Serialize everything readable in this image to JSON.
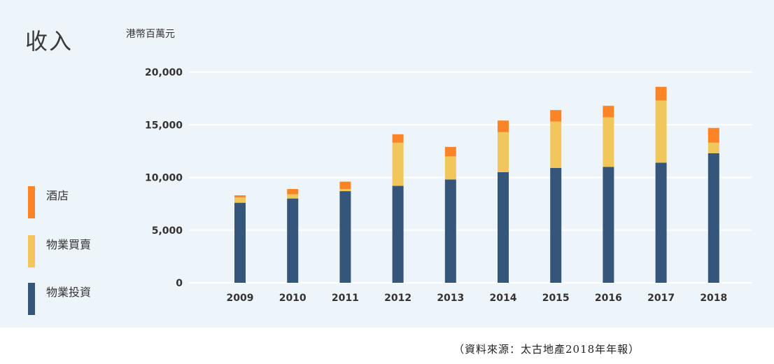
{
  "title": "收入",
  "unit": "港幣百萬元",
  "source": "（資料來源：太古地產2018年年報）",
  "legend": [
    {
      "label": "酒店",
      "color": "#fb8526"
    },
    {
      "label": "物業買賣",
      "color": "#f1c75b"
    },
    {
      "label": "物業投資",
      "color": "#35567a"
    }
  ],
  "chart_data": {
    "type": "bar",
    "stacked": true,
    "title": "收入",
    "ylabel": "港幣百萬元",
    "xlabel": "",
    "ylim": [
      0,
      20000
    ],
    "yticks": [
      "0",
      "5,000",
      "10,000",
      "15,000",
      "20,000"
    ],
    "ytick_values": [
      0,
      5000,
      10000,
      15000,
      20000
    ],
    "grid": true,
    "legend_position": "left",
    "categories": [
      "2009",
      "2010",
      "2011",
      "2012",
      "2013",
      "2014",
      "2015",
      "2016",
      "2017",
      "2018"
    ],
    "series": [
      {
        "name": "物業投資",
        "color": "#35567a",
        "values": [
          7600,
          8000,
          8700,
          9200,
          9800,
          10500,
          10900,
          11000,
          11400,
          12300
        ]
      },
      {
        "name": "物業買賣",
        "color": "#f1c75b",
        "values": [
          500,
          400,
          200,
          4100,
          2200,
          3800,
          4400,
          4700,
          5900,
          1000
        ]
      },
      {
        "name": "酒店",
        "color": "#fb8526",
        "values": [
          200,
          500,
          700,
          800,
          900,
          1100,
          1100,
          1100,
          1300,
          1400
        ]
      }
    ]
  }
}
